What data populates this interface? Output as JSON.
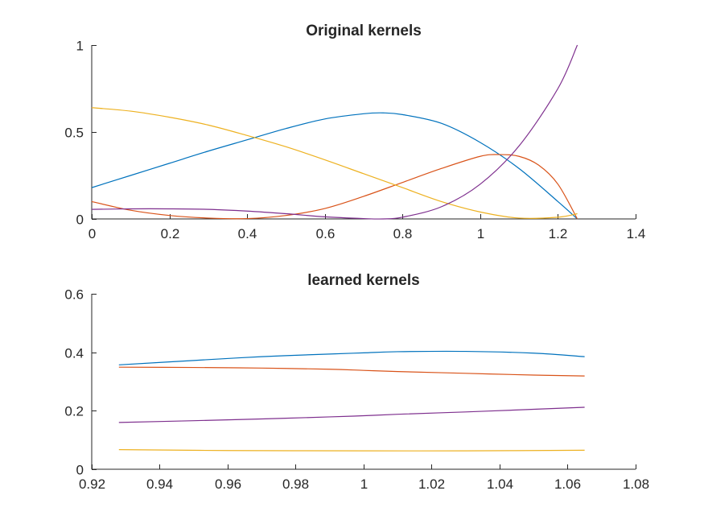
{
  "chart_data": [
    {
      "type": "line",
      "title": "Original kernels",
      "xlabel": "",
      "ylabel": "",
      "xlim": [
        0,
        1.4
      ],
      "ylim": [
        0,
        1
      ],
      "xticks": [
        0,
        0.2,
        0.4,
        0.6,
        0.8,
        1,
        1.2,
        1.4
      ],
      "xtick_labels": [
        "0",
        "0.2",
        "0.4",
        "0.6",
        "0.8",
        "1",
        "1.2",
        "1.4"
      ],
      "yticks": [
        0,
        0.5,
        1
      ],
      "ytick_labels": [
        "0",
        "0.5",
        "1"
      ],
      "grid": false,
      "series": [
        {
          "color": "#0072BD",
          "x": [
            0,
            0.1,
            0.2,
            0.3,
            0.4,
            0.5,
            0.6,
            0.7,
            0.75,
            0.8,
            0.9,
            1.0,
            1.1,
            1.2,
            1.25
          ],
          "y": [
            0.18,
            0.25,
            0.32,
            0.39,
            0.455,
            0.52,
            0.575,
            0.605,
            0.61,
            0.6,
            0.55,
            0.44,
            0.29,
            0.1,
            0
          ]
        },
        {
          "color": "#D95319",
          "x": [
            0,
            0.1,
            0.2,
            0.3,
            0.4,
            0.5,
            0.6,
            0.7,
            0.8,
            0.9,
            1.0,
            1.05,
            1.1,
            1.15,
            1.2,
            1.25
          ],
          "y": [
            0.1,
            0.05,
            0.02,
            0.005,
            0.002,
            0.02,
            0.06,
            0.13,
            0.21,
            0.29,
            0.36,
            0.37,
            0.36,
            0.31,
            0.2,
            0
          ]
        },
        {
          "color": "#EDB120",
          "x": [
            0,
            0.1,
            0.2,
            0.3,
            0.4,
            0.5,
            0.6,
            0.7,
            0.8,
            0.9,
            1.0,
            1.1,
            1.2,
            1.25
          ],
          "y": [
            0.64,
            0.62,
            0.585,
            0.54,
            0.48,
            0.415,
            0.34,
            0.26,
            0.18,
            0.1,
            0.04,
            0.005,
            0.01,
            0.03
          ]
        },
        {
          "color": "#7E2F8E",
          "x": [
            0,
            0.1,
            0.2,
            0.3,
            0.4,
            0.5,
            0.6,
            0.7,
            0.75,
            0.8,
            0.9,
            1.0,
            1.1,
            1.2,
            1.25
          ],
          "y": [
            0.055,
            0.058,
            0.058,
            0.055,
            0.045,
            0.03,
            0.012,
            0.002,
            0,
            0.01,
            0.07,
            0.2,
            0.42,
            0.75,
            1
          ]
        }
      ]
    },
    {
      "type": "line",
      "title": "learned kernels",
      "xlabel": "",
      "ylabel": "",
      "xlim": [
        0.92,
        1.08
      ],
      "ylim": [
        0,
        0.6
      ],
      "xticks": [
        0.92,
        0.94,
        0.96,
        0.98,
        1,
        1.02,
        1.04,
        1.06,
        1.08
      ],
      "xtick_labels": [
        "0.92",
        "0.94",
        "0.96",
        "0.98",
        "1",
        "1.02",
        "1.04",
        "1.06",
        "1.08"
      ],
      "yticks": [
        0,
        0.2,
        0.4,
        0.6
      ],
      "ytick_labels": [
        "0",
        "0.2",
        "0.4",
        "0.6"
      ],
      "grid": false,
      "series": [
        {
          "color": "#0072BD",
          "x": [
            0.928,
            0.95,
            0.97,
            0.99,
            1.0,
            1.01,
            1.03,
            1.05,
            1.065
          ],
          "y": [
            0.357,
            0.372,
            0.385,
            0.394,
            0.398,
            0.402,
            0.403,
            0.397,
            0.385
          ]
        },
        {
          "color": "#D95319",
          "x": [
            0.928,
            0.95,
            0.97,
            0.99,
            1.0,
            1.01,
            1.03,
            1.05,
            1.065
          ],
          "y": [
            0.349,
            0.348,
            0.346,
            0.342,
            0.338,
            0.334,
            0.328,
            0.322,
            0.319
          ]
        },
        {
          "color": "#EDB120",
          "x": [
            0.928,
            0.96,
            1.0,
            1.03,
            1.065
          ],
          "y": [
            0.067,
            0.064,
            0.063,
            0.063,
            0.065
          ]
        },
        {
          "color": "#7E2F8E",
          "x": [
            0.928,
            0.95,
            0.97,
            0.99,
            1.0,
            1.01,
            1.03,
            1.05,
            1.065
          ],
          "y": [
            0.16,
            0.166,
            0.172,
            0.179,
            0.183,
            0.188,
            0.196,
            0.205,
            0.212
          ]
        }
      ]
    }
  ]
}
